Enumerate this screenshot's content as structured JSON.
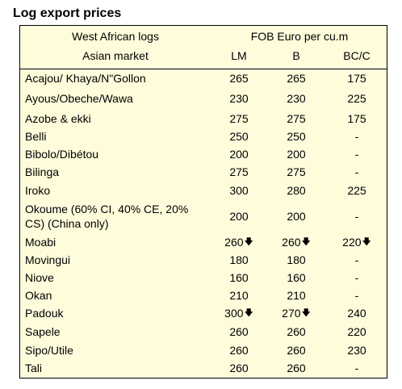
{
  "title": "Log export prices",
  "header": {
    "col1_line1": "West African logs",
    "col1_line2": "Asian market",
    "price_header": "FOB Euro per cu.m",
    "grades": [
      "LM",
      "B",
      "BC/C"
    ]
  },
  "trend_symbol": "🡇",
  "rows": [
    {
      "name": "Acajou/ Khaya/N\"Gollon",
      "lm": "265",
      "b": "265",
      "bc": "175",
      "lm_down": false,
      "b_down": false,
      "bc_down": false
    },
    {
      "name": "Ayous/Obeche/Wawa",
      "lm": "230",
      "b": "230",
      "bc": "225",
      "lm_down": false,
      "b_down": false,
      "bc_down": false
    },
    {
      "name": "Azobe & ekki",
      "lm": "275",
      "b": "275",
      "bc": "175",
      "lm_down": false,
      "b_down": false,
      "bc_down": false
    },
    {
      "name": "Belli",
      "lm": "250",
      "b": "250",
      "bc": "-",
      "lm_down": false,
      "b_down": false,
      "bc_down": false
    },
    {
      "name": "Bibolo/Dibétou",
      "lm": "200",
      "b": "200",
      "bc": "-",
      "lm_down": false,
      "b_down": false,
      "bc_down": false
    },
    {
      "name": "Bilinga",
      "lm": "275",
      "b": "275",
      "bc": "-",
      "lm_down": false,
      "b_down": false,
      "bc_down": false
    },
    {
      "name": "Iroko",
      "lm": "300",
      "b": "280",
      "bc": "225",
      "lm_down": false,
      "b_down": false,
      "bc_down": false
    },
    {
      "name": "Okoume (60% CI, 40% CE, 20% CS) (China only)",
      "lm": "200",
      "b": "200",
      "bc": "-",
      "lm_down": false,
      "b_down": false,
      "bc_down": false
    },
    {
      "name": "Moabi",
      "lm": "260",
      "b": "260",
      "bc": "220",
      "lm_down": true,
      "b_down": true,
      "bc_down": true
    },
    {
      "name": "Movingui",
      "lm": "180",
      "b": "180",
      "bc": "-",
      "lm_down": false,
      "b_down": false,
      "bc_down": false
    },
    {
      "name": "Niove",
      "lm": "160",
      "b": "160",
      "bc": "-",
      "lm_down": false,
      "b_down": false,
      "bc_down": false
    },
    {
      "name": "Okan",
      "lm": "210",
      "b": "210",
      "bc": "-",
      "lm_down": false,
      "b_down": false,
      "bc_down": false
    },
    {
      "name": "Padouk",
      "lm": "300",
      "b": "270",
      "bc": "240",
      "lm_down": true,
      "b_down": true,
      "bc_down": false
    },
    {
      "name": "Sapele",
      "lm": "260",
      "b": "260",
      "bc": "220",
      "lm_down": false,
      "b_down": false,
      "bc_down": false
    },
    {
      "name": "Sipo/Utile",
      "lm": "260",
      "b": "260",
      "bc": "230",
      "lm_down": false,
      "b_down": false,
      "bc_down": false
    },
    {
      "name": "Tali",
      "lm": "260",
      "b": "260",
      "bc": "-",
      "lm_down": false,
      "b_down": false,
      "bc_down": false
    }
  ]
}
